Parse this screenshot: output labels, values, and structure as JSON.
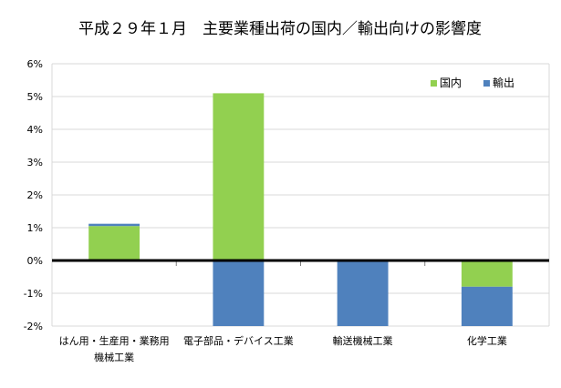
{
  "chart_data": {
    "type": "bar",
    "stacked": true,
    "title": "平成２９年１月　主要業種出荷の国内／輸出向けの影響度",
    "categories": [
      [
        "はん用・生産用・業務用",
        "機械工業"
      ],
      [
        "電子部品・デバイス工業"
      ],
      [
        "輸送機械工業"
      ],
      [
        "化学工業"
      ]
    ],
    "series": [
      {
        "name": "国内",
        "color": "#92d050",
        "values": [
          1.05,
          5.1,
          0.0,
          -0.8
        ]
      },
      {
        "name": "輸出",
        "color": "#4f81bd",
        "values": [
          0.07,
          -2.0,
          -2.0,
          -1.2
        ]
      }
    ],
    "ylim": [
      -2,
      6
    ],
    "y_ticks": [
      -2,
      -1,
      0,
      1,
      2,
      3,
      4,
      5,
      6
    ],
    "y_tick_labels": [
      "-2%",
      "-1%",
      "0%",
      "1%",
      "2%",
      "3%",
      "4%",
      "5%",
      "6%"
    ],
    "grid": true,
    "legend_position": "top-right",
    "xlabel": "",
    "ylabel": ""
  }
}
